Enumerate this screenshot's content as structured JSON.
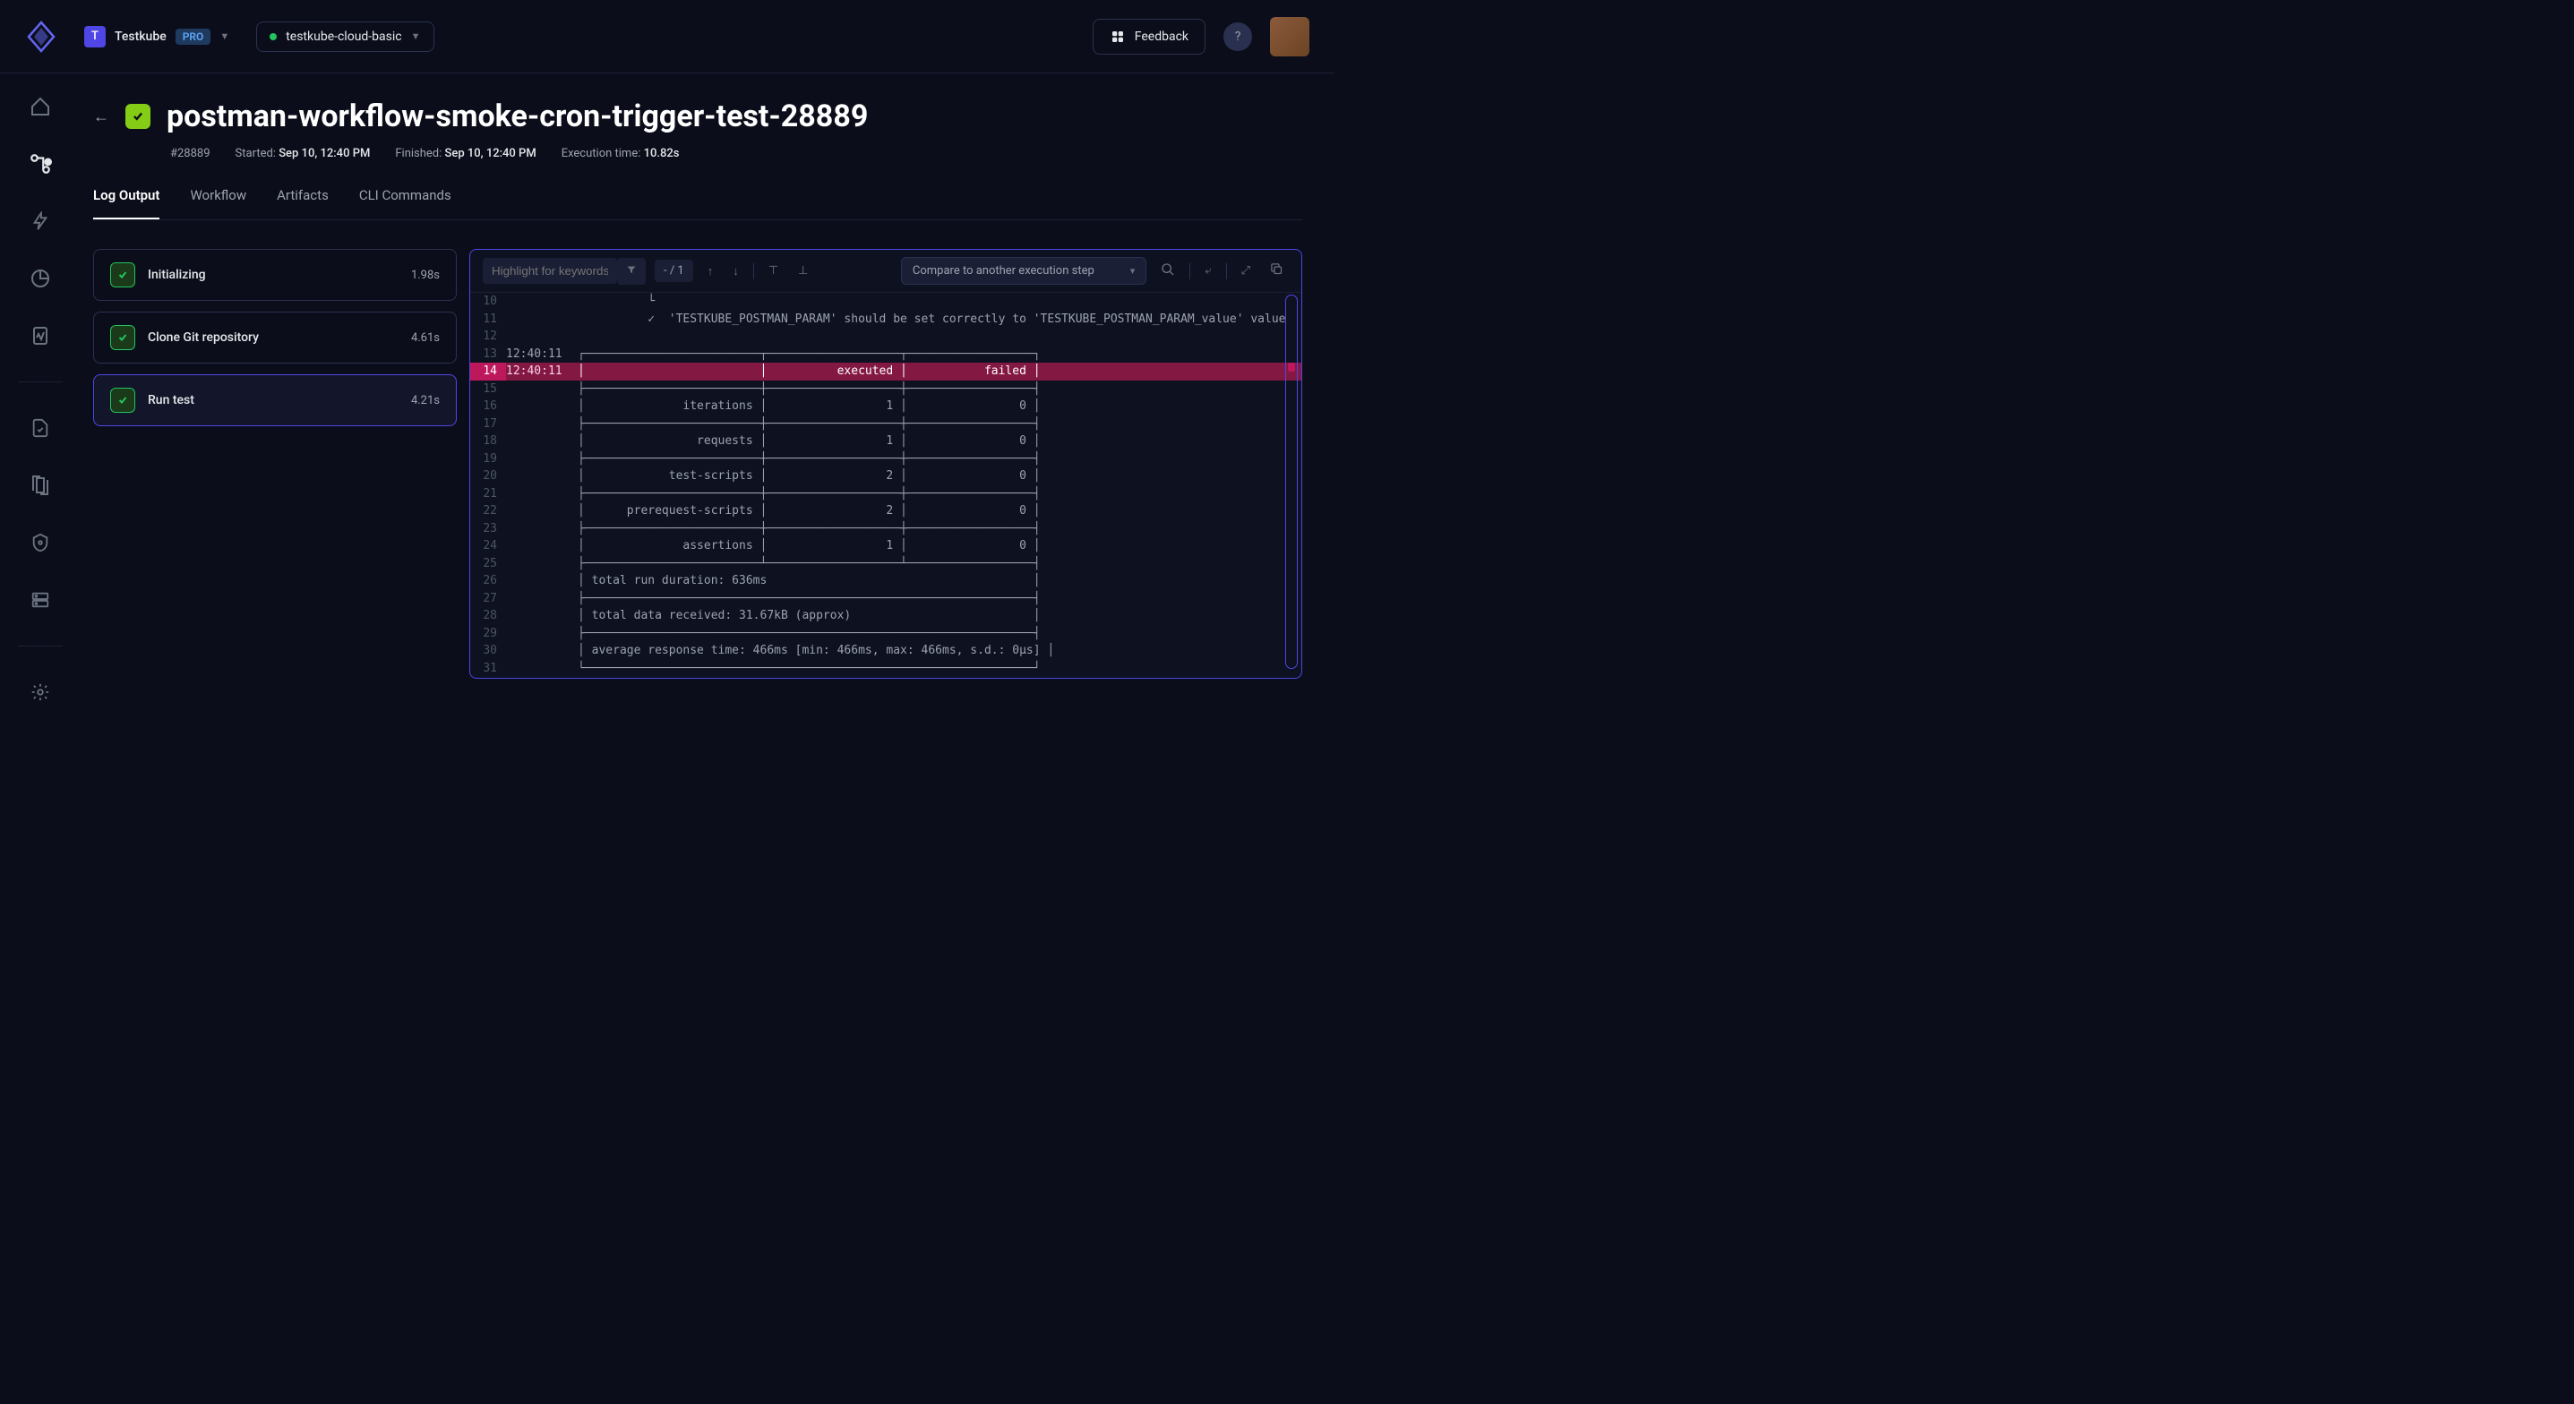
{
  "topbar": {
    "org_badge_letter": "T",
    "org_name": "Testkube",
    "pro_label": "PRO",
    "env_name": "testkube-cloud-basic",
    "feedback_label": "Feedback"
  },
  "page": {
    "title": "postman-workflow-smoke-cron-trigger-test-28889",
    "exec_id": "#28889",
    "started_label": "Started:",
    "started_value": "Sep 10, 12:40 PM",
    "finished_label": "Finished:",
    "finished_value": "Sep 10, 12:40 PM",
    "exectime_label": "Execution time:",
    "exectime_value": "10.82s"
  },
  "tabs": {
    "log_output": "Log Output",
    "workflow": "Workflow",
    "artifacts": "Artifacts",
    "cli": "CLI Commands"
  },
  "steps": [
    {
      "name": "Initializing",
      "time": "1.98s"
    },
    {
      "name": "Clone Git repository",
      "time": "4.61s"
    },
    {
      "name": "Run test",
      "time": "4.21s"
    }
  ],
  "log_toolbar": {
    "highlight_placeholder": "Highlight for keywords",
    "nav_pos": "- / 1",
    "compare_label": "Compare to another execution step"
  },
  "log_lines": [
    {
      "n": 10,
      "ts": "",
      "txt": "          └"
    },
    {
      "n": 11,
      "ts": "",
      "txt": "          ✓  'TESTKUBE_POSTMAN_PARAM' should be set correctly to 'TESTKUBE_POSTMAN_PARAM_value' value"
    },
    {
      "n": 12,
      "ts": "",
      "txt": ""
    },
    {
      "n": 13,
      "ts": "12:40:11",
      "txt": "┌─────────────────────────┬───────────────────┬──────────────────┐"
    },
    {
      "n": 14,
      "ts": "12:40:11",
      "txt": "│                         │          executed │           failed │",
      "hl": true
    },
    {
      "n": 15,
      "ts": "",
      "txt": "├─────────────────────────┼───────────────────┼──────────────────┤"
    },
    {
      "n": 16,
      "ts": "",
      "txt": "│              iterations │                 1 │                0 │"
    },
    {
      "n": 17,
      "ts": "",
      "txt": "├─────────────────────────┼───────────────────┼──────────────────┤"
    },
    {
      "n": 18,
      "ts": "",
      "txt": "│                requests │                 1 │                0 │"
    },
    {
      "n": 19,
      "ts": "",
      "txt": "├─────────────────────────┼───────────────────┼──────────────────┤"
    },
    {
      "n": 20,
      "ts": "",
      "txt": "│            test-scripts │                 2 │                0 │"
    },
    {
      "n": 21,
      "ts": "",
      "txt": "├─────────────────────────┼───────────────────┼──────────────────┤"
    },
    {
      "n": 22,
      "ts": "",
      "txt": "│      prerequest-scripts │                 2 │                0 │"
    },
    {
      "n": 23,
      "ts": "",
      "txt": "├─────────────────────────┼───────────────────┼──────────────────┤"
    },
    {
      "n": 24,
      "ts": "",
      "txt": "│              assertions │                 1 │                0 │"
    },
    {
      "n": 25,
      "ts": "",
      "txt": "├─────────────────────────┴───────────────────┴──────────────────┤"
    },
    {
      "n": 26,
      "ts": "",
      "txt": "│ total run duration: 636ms                                      │"
    },
    {
      "n": 27,
      "ts": "",
      "txt": "├────────────────────────────────────────────────────────────────┤"
    },
    {
      "n": 28,
      "ts": "",
      "txt": "│ total data received: 31.67kB (approx)                          │"
    },
    {
      "n": 29,
      "ts": "",
      "txt": "├────────────────────────────────────────────────────────────────┤"
    },
    {
      "n": 30,
      "ts": "",
      "txt": "│ average response time: 466ms [min: 466ms, max: 466ms, s.d.: 0µs] │"
    },
    {
      "n": 31,
      "ts": "",
      "txt": "└────────────────────────────────────────────────────────────────┘"
    }
  ],
  "colors": {
    "bg": "#0b0e1a",
    "accent": "#4f46e5",
    "success": "#84cc16",
    "highlight_row": "#831843"
  }
}
